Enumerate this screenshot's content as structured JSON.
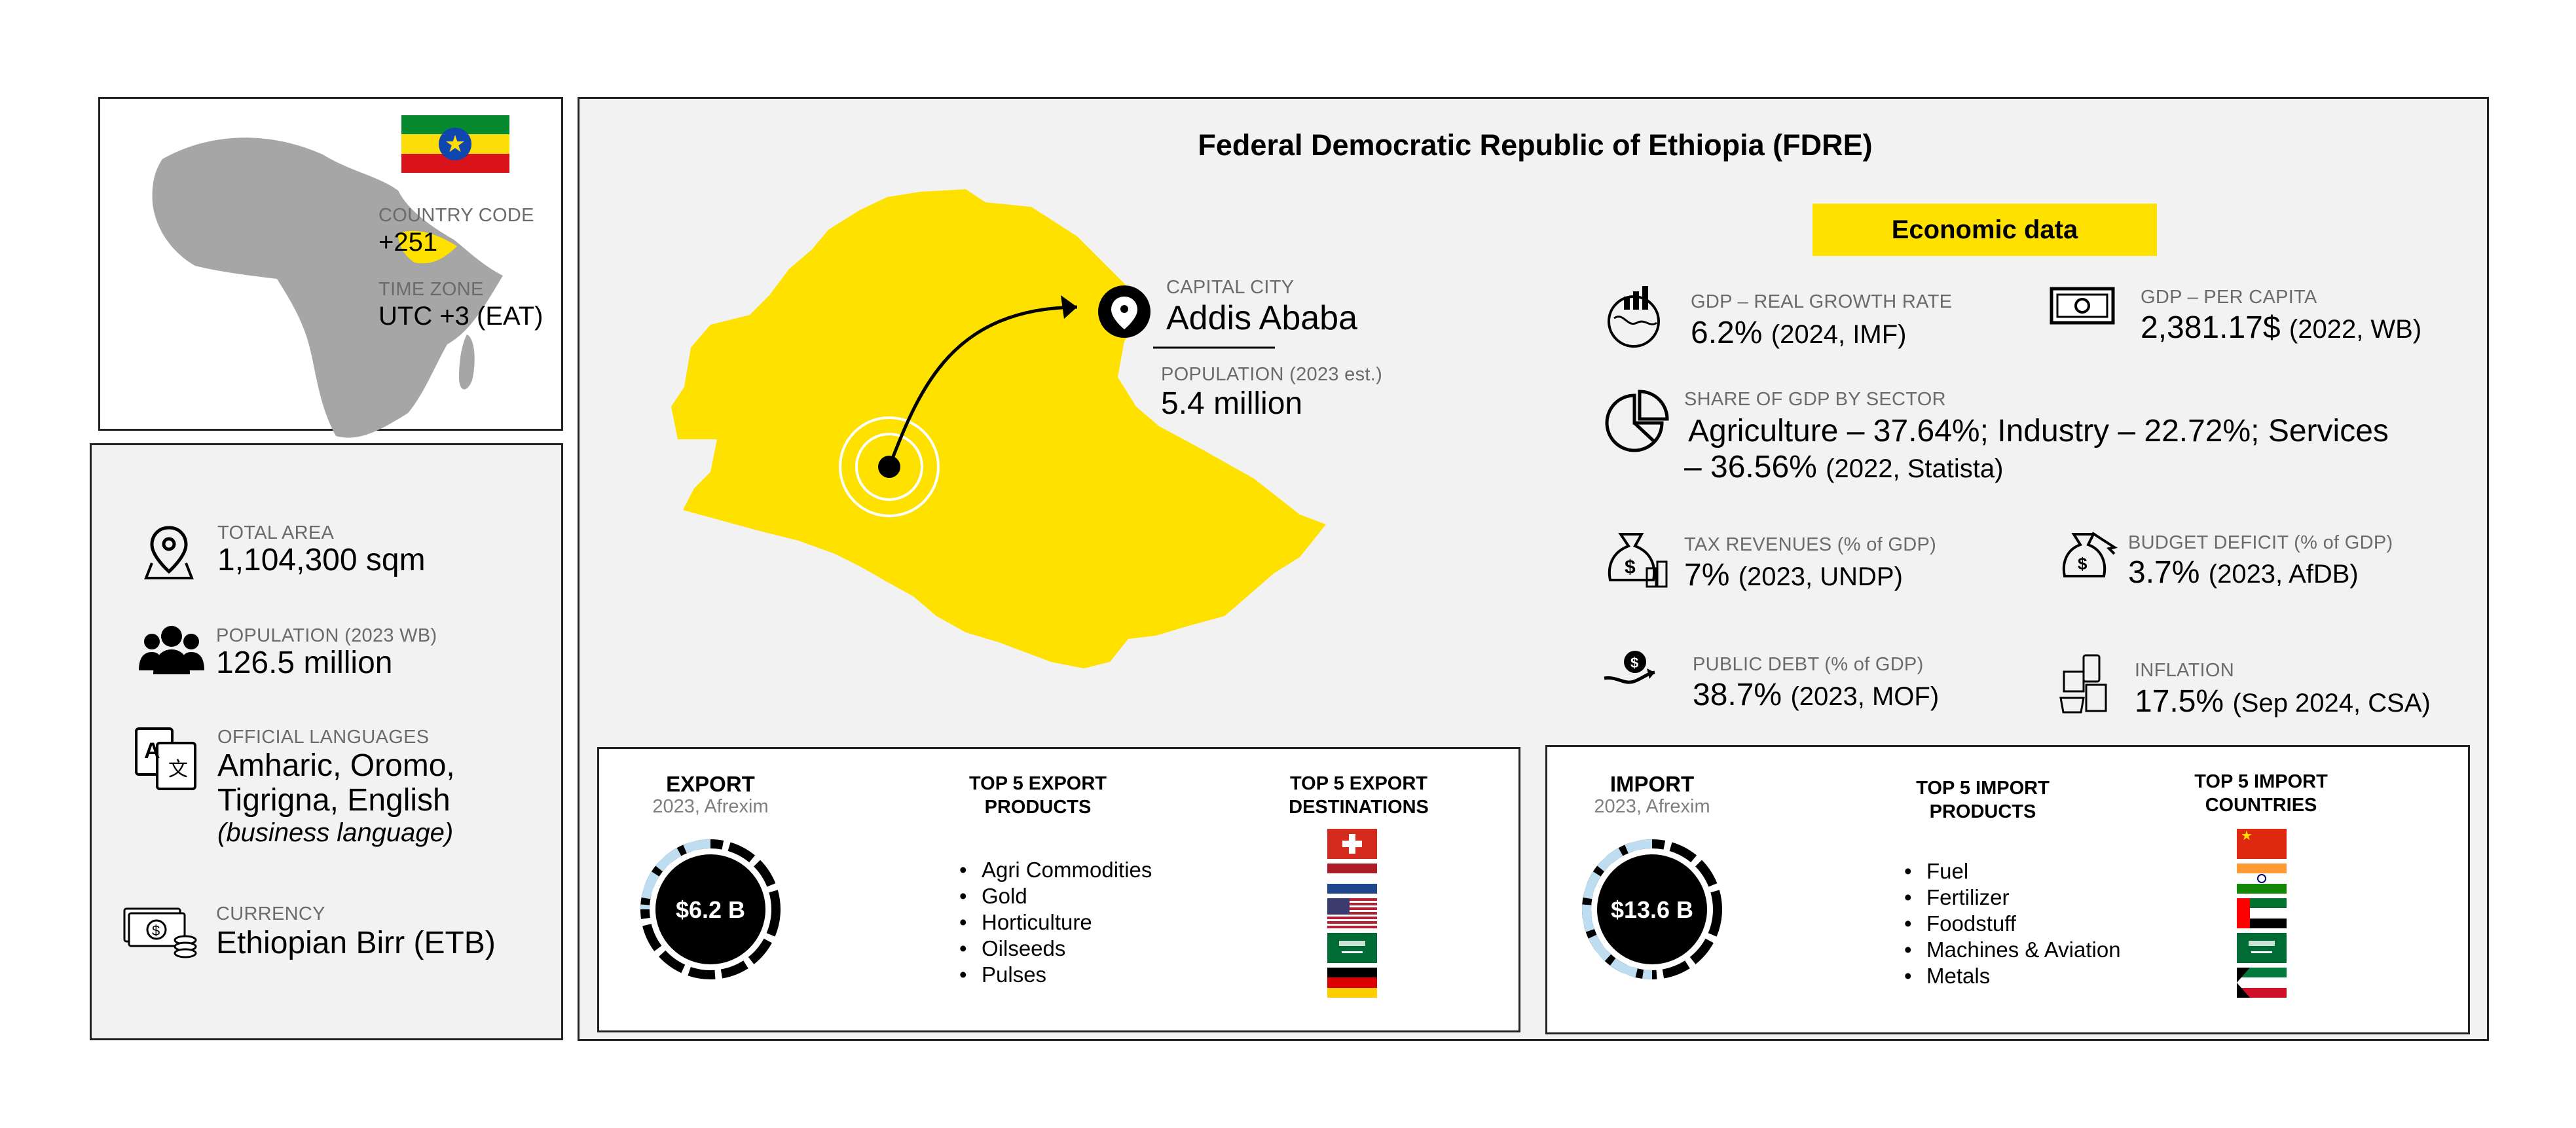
{
  "country_card": {
    "code_label": "COUNTRY CODE",
    "code_value": "+251",
    "timezone_label": "TIME ZONE",
    "timezone_value": "UTC +3 (EAT)"
  },
  "facts": {
    "area_label": "TOTAL AREA",
    "area_value": "1,104,300 sqm",
    "population_label": "POPULATION (2023 WB)",
    "population_value": "126.5 million",
    "languages_label": "OFFICIAL LANGUAGES",
    "languages_line1": "Amharic, Oromo,",
    "languages_line2": "Tigrigna, English",
    "languages_note": "(business language)",
    "currency_label": "CURRENCY",
    "currency_value": "Ethiopian Birr (ETB)"
  },
  "main": {
    "title": "Federal Democratic Republic of Ethiopia (FDRE)",
    "capital_label": "CAPITAL CITY",
    "capital_value": "Addis Ababa",
    "capital_pop_label": "POPULATION (2023 est.)",
    "capital_pop_value": "5.4 million"
  },
  "economic": {
    "heading": "Economic data",
    "heading_color": "#FFE100",
    "gdp_growth_label": "GDP – REAL GROWTH RATE",
    "gdp_growth_value": "6.2%",
    "gdp_growth_src": "(2024, IMF)",
    "gdp_pc_label": "GDP – PER CAPITA",
    "gdp_pc_value": "2,381.17$",
    "gdp_pc_src": "(2022, WB)",
    "sector_label": "SHARE OF GDP BY SECTOR",
    "sector_line1": "Agriculture – 37.64%; Industry – 22.72%; Services",
    "sector_line2": "– 36.56%",
    "sector_src": "(2022, Statista)",
    "tax_label": "TAX REVENUES (% of GDP)",
    "tax_value": "7%",
    "tax_src": "(2023, UNDP)",
    "deficit_label": "BUDGET DEFICIT (% of GDP)",
    "deficit_value": "3.7%",
    "deficit_src": "(2023, AfDB)",
    "debt_label": "PUBLIC DEBT (% of GDP)",
    "debt_value": "38.7%",
    "debt_src": "(2023, MOF)",
    "inflation_label": "INFLATION",
    "inflation_value": "17.5%",
    "inflation_src": "(Sep 2024, CSA)"
  },
  "export": {
    "title": "EXPORT",
    "source": "2023, Afrexim",
    "amount": "$6.2 B",
    "products_header_line1": "TOP 5 EXPORT",
    "products_header_line2": "PRODUCTS",
    "destinations_header_line1": "TOP 5 EXPORT",
    "destinations_header_line2": "DESTINATIONS",
    "products": [
      "Agri Commodities",
      "Gold",
      "Horticulture",
      "Oilseeds",
      "Pulses"
    ],
    "destinations": [
      "switzerland-flag",
      "netherlands-flag",
      "usa-flag",
      "saudi-arabia-flag",
      "germany-flag"
    ]
  },
  "import": {
    "title": "IMPORT",
    "source": "2023, Afrexim",
    "amount": "$13.6 B",
    "products_header_line1": "TOP 5 IMPORT",
    "products_header_line2": "PRODUCTS",
    "countries_header_line1": "TOP 5 IMPORT",
    "countries_header_line2": "COUNTRIES",
    "products": [
      "Fuel",
      "Fertilizer",
      "Foodstuff",
      "Machines & Aviation",
      "Metals"
    ],
    "countries": [
      "china-flag",
      "india-flag",
      "uae-flag",
      "saudi-arabia-flag",
      "kuwait-flag"
    ]
  },
  "colors": {
    "accent_yellow": "#FFE100",
    "panel_grey": "#F2F2F2",
    "map_grey": "#A6A6A6",
    "ring_blue": "#BFDDF0"
  }
}
